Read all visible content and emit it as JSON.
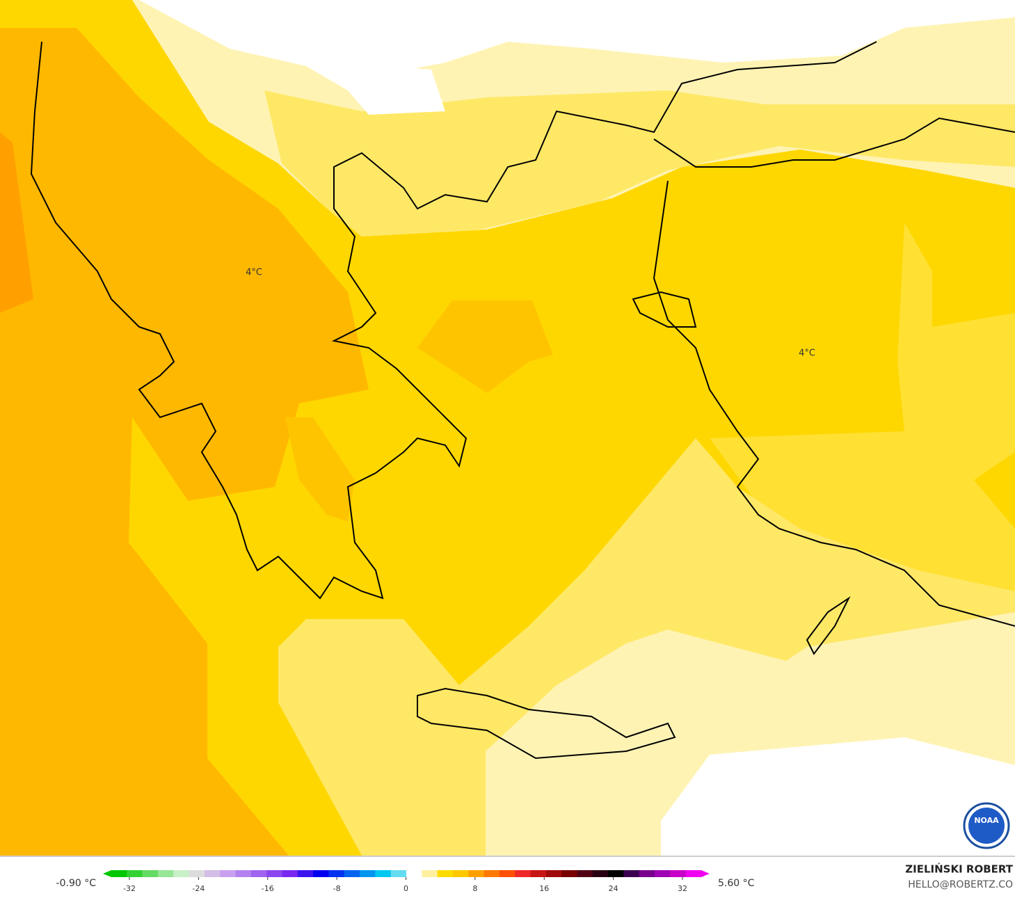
{
  "map": {
    "labels": [
      "4°C",
      "4°C"
    ]
  },
  "colorbar": {
    "min_label": "-0.90 °C",
    "max_label": "5.60 °C",
    "ticks": [
      -32,
      -24,
      -16,
      -8,
      0,
      8,
      16,
      24,
      32
    ],
    "colors": [
      "#00c800",
      "#32d232",
      "#64dc64",
      "#96e696",
      "#c8f0c8",
      "#dcdcdc",
      "#d2bee6",
      "#c8a0f0",
      "#b482f0",
      "#a064f0",
      "#8c46f0",
      "#7828f0",
      "#3c14f0",
      "#0000f0",
      "#0032f0",
      "#0064f0",
      "#0096f0",
      "#00c8f0",
      "#64dcf0",
      "#ffffff",
      "#fff0a0",
      "#ffdc00",
      "#ffc800",
      "#ffa000",
      "#ff7800",
      "#ff5000",
      "#f02828",
      "#c81414",
      "#a00a0a",
      "#780000",
      "#500014",
      "#280014",
      "#000000",
      "#3c0050",
      "#78008c",
      "#a000b4",
      "#c800c8",
      "#f000f0"
    ]
  },
  "credit": {
    "name": "ZIELIŃSKI ROBERT",
    "email": "HELLO@ROBERTZ.CO"
  },
  "logo": "NOAA"
}
